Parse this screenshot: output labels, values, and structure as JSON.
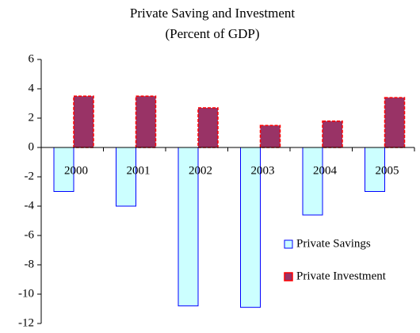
{
  "chart_data": {
    "type": "bar",
    "title": "Private Saving and Investment",
    "subtitle": "(Percent of GDP)",
    "categories": [
      "2000",
      "2001",
      "2002",
      "2003",
      "2004",
      "2005"
    ],
    "series": [
      {
        "name": "Private Savings",
        "color": "#ccffff",
        "values": [
          -3,
          -4,
          -10.8,
          -10.9,
          -4.6,
          -3
        ]
      },
      {
        "name": "Private Investment",
        "color": "#993366",
        "values": [
          3.5,
          3.5,
          2.7,
          1.5,
          1.8,
          3.4
        ]
      }
    ],
    "ylim": [
      -12,
      6
    ],
    "yticks": [
      -12,
      -10,
      -8,
      -6,
      -4,
      -2,
      0,
      2,
      4,
      6
    ],
    "grid": false
  }
}
